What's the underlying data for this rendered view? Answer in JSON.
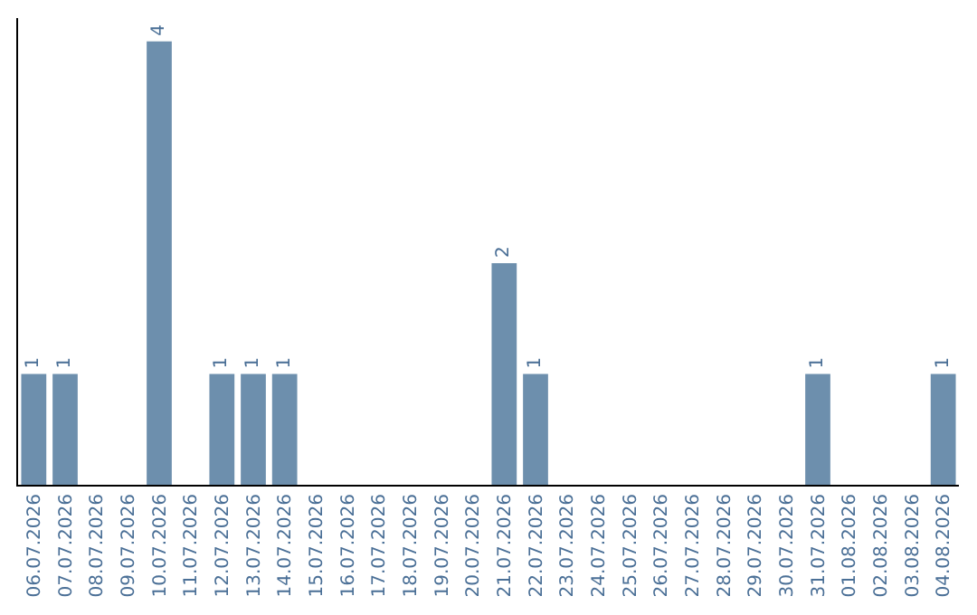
{
  "chart_data": {
    "type": "bar",
    "categories": [
      "06.07.2026",
      "07.07.2026",
      "08.07.2026",
      "09.07.2026",
      "10.07.2026",
      "11.07.2026",
      "12.07.2026",
      "13.07.2026",
      "14.07.2026",
      "15.07.2026",
      "16.07.2026",
      "17.07.2026",
      "18.07.2026",
      "19.07.2026",
      "20.07.2026",
      "21.07.2026",
      "22.07.2026",
      "23.07.2026",
      "24.07.2026",
      "25.07.2026",
      "26.07.2026",
      "27.07.2026",
      "28.07.2026",
      "29.07.2026",
      "30.07.2026",
      "31.07.2026",
      "01.08.2026",
      "02.08.2026",
      "03.08.2026",
      "04.08.2026"
    ],
    "values": [
      1,
      1,
      0,
      0,
      4,
      0,
      1,
      1,
      1,
      0,
      0,
      0,
      0,
      0,
      0,
      2,
      1,
      0,
      0,
      0,
      0,
      0,
      0,
      0,
      0,
      1,
      0,
      0,
      0,
      1
    ],
    "value_labels": [
      "1",
      "1",
      null,
      null,
      "4",
      null,
      "1",
      "1",
      "1",
      null,
      null,
      null,
      null,
      null,
      null,
      "2",
      "1",
      null,
      null,
      null,
      null,
      null,
      null,
      null,
      null,
      "1",
      null,
      null,
      null,
      "1"
    ],
    "color": "#6d8fad",
    "tick_labels": "x"
  }
}
